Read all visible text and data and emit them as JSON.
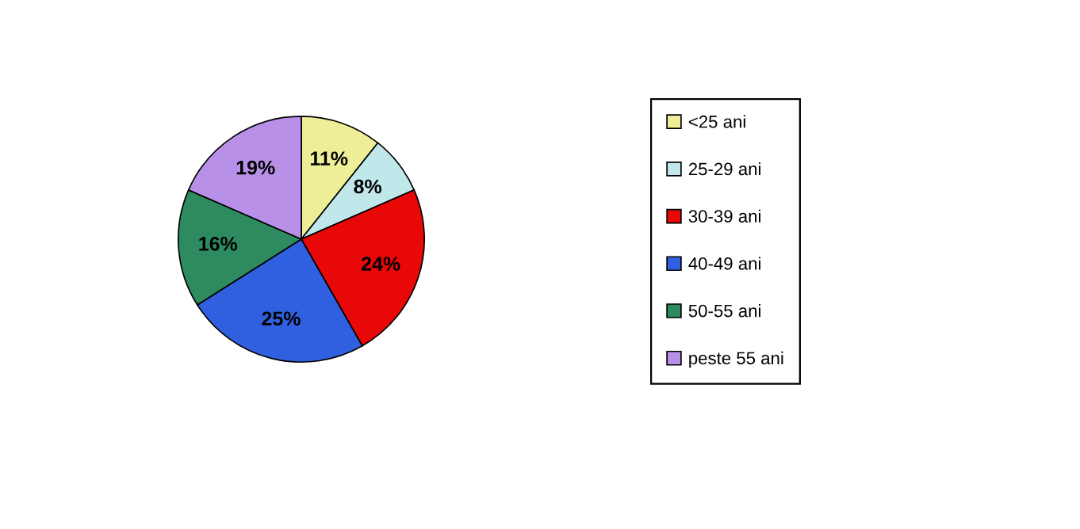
{
  "chart_data": {
    "type": "pie",
    "categories": [
      "<25 ani",
      "25-29 ani",
      "30-39 ani",
      "40-49 ani",
      "50-55 ani",
      "peste 55 ani"
    ],
    "values": [
      11,
      8,
      24,
      25,
      16,
      19
    ],
    "colors": [
      "#eeee99",
      "#c0e8ea",
      "#e80808",
      "#3060e0",
      "#2e8b60",
      "#b890e8"
    ],
    "value_labels": [
      "11%",
      "8%",
      "24%",
      "25%",
      "16%",
      "19%"
    ],
    "legend": "right"
  }
}
